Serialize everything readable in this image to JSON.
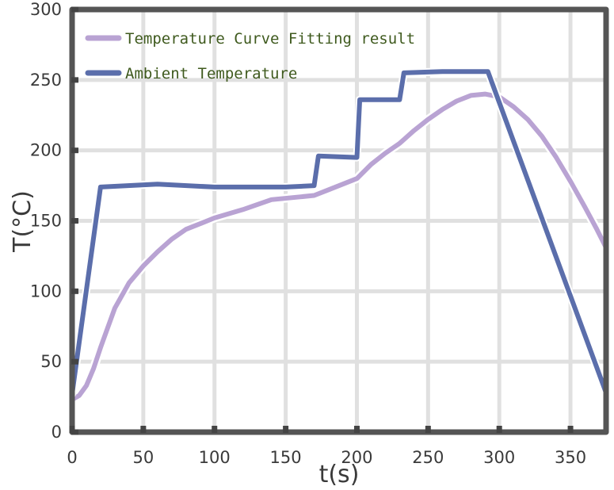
{
  "chart_data": {
    "type": "line",
    "xlabel": "t(s)",
    "ylabel": "T(°C)",
    "xlim": [
      0,
      375
    ],
    "ylim": [
      0,
      300
    ],
    "x_ticks": [
      0,
      50,
      100,
      150,
      200,
      250,
      300,
      350
    ],
    "y_ticks": [
      0,
      50,
      100,
      150,
      200,
      250,
      300
    ],
    "grid": true,
    "legend_position": "top-left",
    "series": [
      {
        "name": "Temperature Curve Fitting result",
        "color": "#b9a3d3",
        "points": [
          [
            0,
            23
          ],
          [
            5,
            26
          ],
          [
            10,
            33
          ],
          [
            15,
            45
          ],
          [
            20,
            60
          ],
          [
            25,
            74
          ],
          [
            30,
            88
          ],
          [
            40,
            106
          ],
          [
            50,
            118
          ],
          [
            60,
            128
          ],
          [
            70,
            137
          ],
          [
            80,
            144
          ],
          [
            90,
            148
          ],
          [
            100,
            152
          ],
          [
            120,
            158
          ],
          [
            140,
            165
          ],
          [
            160,
            167
          ],
          [
            170,
            168
          ],
          [
            180,
            172
          ],
          [
            190,
            176
          ],
          [
            200,
            180
          ],
          [
            210,
            190
          ],
          [
            220,
            198
          ],
          [
            230,
            205
          ],
          [
            240,
            214
          ],
          [
            250,
            222
          ],
          [
            260,
            229
          ],
          [
            270,
            235
          ],
          [
            280,
            239
          ],
          [
            290,
            240
          ],
          [
            300,
            238
          ],
          [
            310,
            231
          ],
          [
            320,
            222
          ],
          [
            330,
            210
          ],
          [
            340,
            195
          ],
          [
            350,
            178
          ],
          [
            360,
            160
          ],
          [
            368,
            145
          ],
          [
            375,
            131
          ]
        ]
      },
      {
        "name": "Ambient Temperature",
        "color": "#5b6eab",
        "points": [
          [
            0,
            27
          ],
          [
            20,
            174
          ],
          [
            60,
            176
          ],
          [
            100,
            174
          ],
          [
            150,
            174
          ],
          [
            170,
            175
          ],
          [
            173,
            196
          ],
          [
            200,
            195
          ],
          [
            202,
            236
          ],
          [
            230,
            236
          ],
          [
            233,
            255
          ],
          [
            260,
            256
          ],
          [
            292,
            256
          ],
          [
            375,
            28
          ]
        ]
      }
    ]
  }
}
